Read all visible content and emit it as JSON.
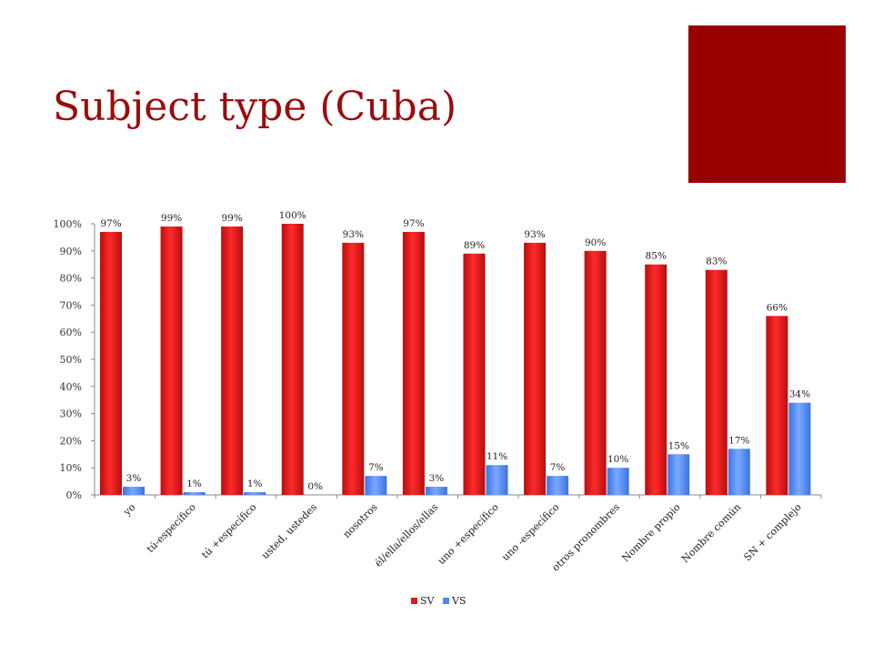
{
  "slide": {
    "title": "Subject type (Cuba)",
    "title_color": "#9b0c0c",
    "accent_color": "#990000"
  },
  "chart_data": {
    "type": "bar",
    "title": "",
    "xlabel": "",
    "ylabel": "",
    "categories": [
      "yo",
      "tú-específico",
      "tú +específico",
      "usted, ustedes",
      "nosotros",
      "él/ella/ellos/ellas",
      "uno +específico",
      "uno -específico",
      "otros pronombres",
      "Nombre propio",
      "Nombre común",
      "SN + complejo"
    ],
    "series": [
      {
        "name": "SV",
        "color": "#e31a1a",
        "values": [
          97,
          99,
          99,
          100,
          93,
          97,
          89,
          93,
          90,
          85,
          83,
          66
        ],
        "labels": [
          "97%",
          "99%",
          "99%",
          "100%",
          "93%",
          "97%",
          "89%",
          "93%",
          "90%",
          "85%",
          "83%",
          "66%"
        ]
      },
      {
        "name": "VS",
        "color": "#4d88f0",
        "values": [
          3,
          1,
          1,
          0,
          7,
          3,
          11,
          7,
          10,
          15,
          17,
          34
        ],
        "labels": [
          "3%",
          "1%",
          "1%",
          "0%",
          "7%",
          "3%",
          "11%",
          "7%",
          "10%",
          "15%",
          "17%",
          "34%"
        ]
      }
    ],
    "y_ticks": [
      "0%",
      "10%",
      "20%",
      "30%",
      "40%",
      "50%",
      "60%",
      "70%",
      "80%",
      "90%",
      "100%"
    ],
    "ylim": [
      0,
      100
    ],
    "grid": false,
    "legend_position": "bottom"
  }
}
